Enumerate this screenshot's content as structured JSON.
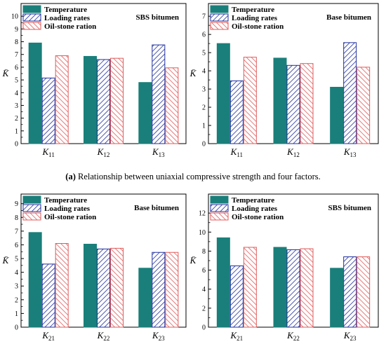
{
  "colors": {
    "temperature": "#1a7f7a",
    "loading": "#1f2f9e",
    "oilstone": "#e05a5a",
    "axis": "#000000"
  },
  "legend_labels": [
    "Temperature",
    "Loading rates",
    "Oil-stone ration"
  ],
  "captions": {
    "a_tag": "(a)",
    "a_text": " Relationship between uniaxial compressive strength and four factors."
  },
  "chart_data": [
    {
      "type": "bar",
      "title": "SBS bitumen",
      "ylabel": "K̄",
      "categories": [
        [
          "K",
          "11"
        ],
        [
          "K",
          "12"
        ],
        [
          "K",
          "13"
        ]
      ],
      "ylim": [
        0,
        11
      ],
      "yticks": [
        0,
        1,
        2,
        3,
        4,
        5,
        6,
        7,
        8,
        9,
        10
      ],
      "series": [
        {
          "name": "Temperature",
          "values": [
            7.9,
            6.85,
            4.8
          ]
        },
        {
          "name": "Loading rates",
          "values": [
            5.15,
            6.6,
            7.75
          ]
        },
        {
          "name": "Oil-stone ration",
          "values": [
            6.9,
            6.7,
            5.95
          ]
        }
      ]
    },
    {
      "type": "bar",
      "title": "Base bitumen",
      "ylabel": "K̄",
      "categories": [
        [
          "K",
          "11"
        ],
        [
          "K",
          "12"
        ],
        [
          "K",
          "13"
        ]
      ],
      "ylim": [
        0,
        7.7
      ],
      "yticks": [
        0,
        1,
        2,
        3,
        4,
        5,
        6,
        7
      ],
      "series": [
        {
          "name": "Temperature",
          "values": [
            5.5,
            4.7,
            3.1
          ]
        },
        {
          "name": "Loading rates",
          "values": [
            3.45,
            4.3,
            5.55
          ]
        },
        {
          "name": "Oil-stone ration",
          "values": [
            4.75,
            4.4,
            4.2
          ]
        }
      ]
    },
    {
      "type": "bar",
      "title": "Base bitumen",
      "ylabel": "K̄",
      "categories": [
        [
          "K",
          "21"
        ],
        [
          "K",
          "22"
        ],
        [
          "K",
          "23"
        ]
      ],
      "ylim": [
        0,
        9.7
      ],
      "yticks": [
        0,
        1,
        2,
        3,
        4,
        5,
        6,
        7,
        8,
        9
      ],
      "series": [
        {
          "name": "Temperature",
          "values": [
            6.9,
            6.05,
            4.3
          ]
        },
        {
          "name": "Loading rates",
          "values": [
            4.6,
            5.7,
            5.45
          ]
        },
        {
          "name": "Oil-stone ration",
          "values": [
            6.1,
            5.75,
            5.45
          ]
        }
      ]
    },
    {
      "type": "bar",
      "title": "SBS bitumen",
      "ylabel": "K̄",
      "categories": [
        [
          "K",
          "21"
        ],
        [
          "K",
          "22"
        ],
        [
          "K",
          "23"
        ]
      ],
      "ylim": [
        0,
        14
      ],
      "yticks": [
        0,
        2,
        4,
        6,
        8,
        10,
        12
      ],
      "series": [
        {
          "name": "Temperature",
          "values": [
            9.4,
            8.4,
            6.2
          ]
        },
        {
          "name": "Loading rates",
          "values": [
            6.45,
            8.15,
            7.4
          ]
        },
        {
          "name": "Oil-stone ration",
          "values": [
            8.4,
            8.25,
            7.4
          ]
        }
      ]
    }
  ]
}
